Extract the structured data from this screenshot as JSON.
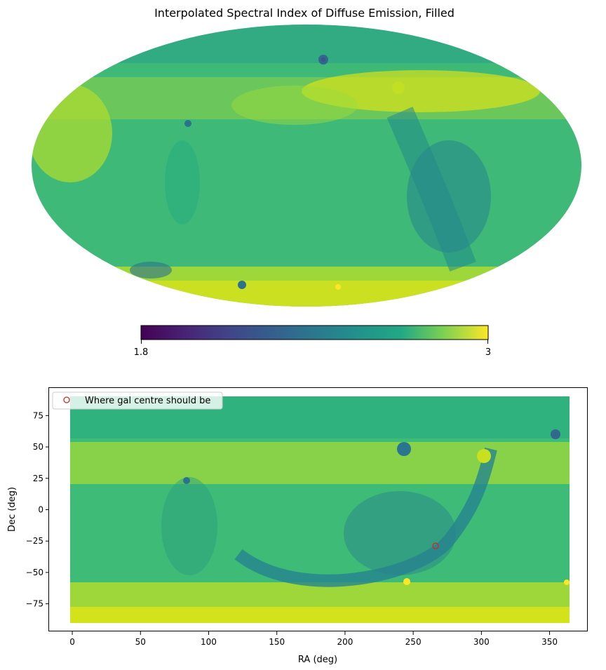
{
  "chart_data": [
    {
      "type": "heatmap",
      "projection": "mollweide",
      "title": "Interpolated Spectral Index of Diffuse Emission, Filled",
      "colormap": "viridis",
      "colorbar": {
        "min": 1.8,
        "max": 3,
        "tick_labels": [
          "1.8",
          "3"
        ]
      },
      "grid": false,
      "features": [
        {
          "name": "dark-arc",
          "value": 2.35,
          "description_visible": false
        },
        {
          "name": "bright-north-band",
          "value": 2.9
        },
        {
          "name": "background",
          "value": 2.6
        }
      ]
    },
    {
      "type": "heatmap",
      "projection": "cartesian",
      "title": "",
      "xlabel": "RA (deg)",
      "ylabel": "Dec (deg)",
      "xlim": [
        -17,
        378
      ],
      "ylim": [
        -97,
        97
      ],
      "xticks": [
        0,
        50,
        100,
        150,
        200,
        250,
        300,
        350
      ],
      "yticks": [
        -75,
        -50,
        -25,
        0,
        25,
        50,
        75
      ],
      "grid": false,
      "colormap": "viridis",
      "legend": {
        "placement": "upper-left",
        "entries": [
          {
            "label": "Where gal centre should be",
            "marker": "open-circle",
            "color": "#d62728"
          }
        ]
      },
      "marker_points": [
        {
          "x": 266.4,
          "y": -28.9
        }
      ]
    }
  ],
  "colors": {
    "viridis_dark": "#440154",
    "viridis_mid": "#21918c",
    "viridis_bright": "#fde725",
    "marker": "#d62728"
  }
}
